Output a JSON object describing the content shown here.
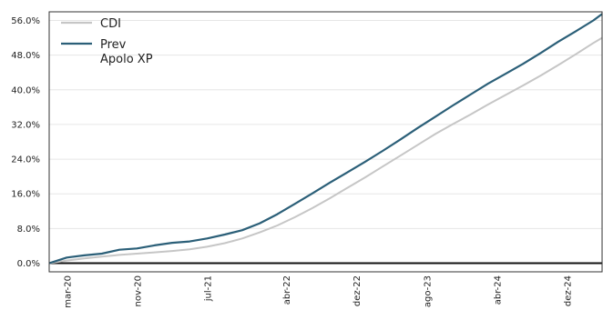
{
  "chart_data": {
    "type": "line",
    "x_ticks": [
      "mar-20",
      "nov-20",
      "jul-21",
      "abr-22",
      "dez-22",
      "ago-23",
      "abr-24",
      "dez-24"
    ],
    "ylim": [
      -2.0,
      58.0
    ],
    "y_ticks": [
      "0.0%",
      "8.0%",
      "16.0%",
      "24.0%",
      "32.0%",
      "40.0%",
      "48.0%",
      "56.0%"
    ],
    "y_tick_values": [
      0,
      8,
      16,
      24,
      32,
      40,
      48,
      56
    ],
    "grid": "horizontal",
    "legend_position": "top-left",
    "series": [
      {
        "name": "CDI",
        "color": "#c6c6c6",
        "points": [
          [
            "2020-01",
            0.0
          ],
          [
            "2020-03",
            0.6
          ],
          [
            "2020-05",
            1.1
          ],
          [
            "2020-07",
            1.5
          ],
          [
            "2020-09",
            1.9
          ],
          [
            "2020-11",
            2.2
          ],
          [
            "2021-01",
            2.5
          ],
          [
            "2021-03",
            2.8
          ],
          [
            "2021-05",
            3.2
          ],
          [
            "2021-07",
            3.8
          ],
          [
            "2021-09",
            4.6
          ],
          [
            "2021-11",
            5.7
          ],
          [
            "2022-01",
            7.1
          ],
          [
            "2022-03",
            8.7
          ],
          [
            "2022-05",
            10.6
          ],
          [
            "2022-07",
            12.7
          ],
          [
            "2022-09",
            15.0
          ],
          [
            "2022-11",
            17.4
          ],
          [
            "2023-01",
            19.8
          ],
          [
            "2023-03",
            22.3
          ],
          [
            "2023-05",
            24.8
          ],
          [
            "2023-07",
            27.3
          ],
          [
            "2023-09",
            29.8
          ],
          [
            "2023-11",
            32.1
          ],
          [
            "2024-01",
            34.3
          ],
          [
            "2024-03",
            36.6
          ],
          [
            "2024-05",
            38.8
          ],
          [
            "2024-07",
            41.0
          ],
          [
            "2024-09",
            43.3
          ],
          [
            "2024-11",
            45.7
          ],
          [
            "2025-01",
            48.2
          ],
          [
            "2025-03",
            50.8
          ],
          [
            "2025-04",
            52.0
          ]
        ]
      },
      {
        "name": "Prev\nApolo XP",
        "color": "#2b5f78",
        "points": [
          [
            "2020-01",
            0.0
          ],
          [
            "2020-03",
            1.3
          ],
          [
            "2020-05",
            1.8
          ],
          [
            "2020-07",
            2.2
          ],
          [
            "2020-09",
            3.1
          ],
          [
            "2020-11",
            3.4
          ],
          [
            "2021-01",
            4.1
          ],
          [
            "2021-03",
            4.7
          ],
          [
            "2021-05",
            5.0
          ],
          [
            "2021-07",
            5.7
          ],
          [
            "2021-09",
            6.6
          ],
          [
            "2021-11",
            7.6
          ],
          [
            "2022-01",
            9.2
          ],
          [
            "2022-03",
            11.3
          ],
          [
            "2022-05",
            13.7
          ],
          [
            "2022-07",
            16.1
          ],
          [
            "2022-09",
            18.6
          ],
          [
            "2022-11",
            21.0
          ],
          [
            "2023-01",
            23.4
          ],
          [
            "2023-03",
            25.9
          ],
          [
            "2023-05",
            28.5
          ],
          [
            "2023-07",
            31.2
          ],
          [
            "2023-09",
            33.8
          ],
          [
            "2023-11",
            36.4
          ],
          [
            "2024-01",
            38.9
          ],
          [
            "2024-03",
            41.4
          ],
          [
            "2024-05",
            43.7
          ],
          [
            "2024-07",
            46.0
          ],
          [
            "2024-09",
            48.5
          ],
          [
            "2024-11",
            51.1
          ],
          [
            "2025-01",
            53.5
          ],
          [
            "2025-03",
            56.0
          ],
          [
            "2025-04",
            57.5
          ]
        ]
      }
    ]
  }
}
